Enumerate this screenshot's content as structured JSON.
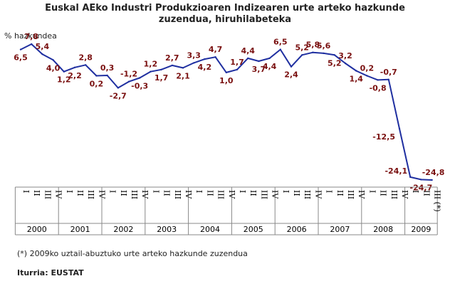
{
  "title_line1": "Euskal AEko Industri Produkzioaren Indizearen urte arteko hazkunde",
  "title_line2": "zuzendua, hiruhilabeteka",
  "ylabel": "% hazkundea",
  "note": "(*) 2009ko uztail-abuztuko urte arteko hazkunde zuzendua",
  "source": "Iturria: EUSTAT",
  "colors": {
    "line": "#1f2fa0",
    "labels": "#7a1010",
    "axis": "#888888"
  },
  "chart_data": {
    "type": "line",
    "title": "Euskal AEko Industri Produkzioaren Indizearen urte arteko hazkunde zuzendua, hiruhilabeteka",
    "ylabel": "% hazkundea",
    "ylim": [
      -26,
      9
    ],
    "grid": false,
    "x": [
      "2000-I",
      "2000-II",
      "2000-III",
      "2000-IV",
      "2001-I",
      "2001-II",
      "2001-III",
      "2001-IV",
      "2002-I",
      "2002-II",
      "2002-III",
      "2002-IV",
      "2003-I",
      "2003-II",
      "2003-III",
      "2003-IV",
      "2004-I",
      "2004-II",
      "2004-III",
      "2004-IV",
      "2005-I",
      "2005-II",
      "2005-III",
      "2005-IV",
      "2006-I",
      "2006-II",
      "2006-III",
      "2006-IV",
      "2007-I",
      "2007-II",
      "2007-III",
      "2007-IV",
      "2008-I",
      "2008-II",
      "2008-III",
      "2008-IV",
      "2009-I",
      "2009-II",
      "2009-III (*)"
    ],
    "values": [
      6.5,
      7.8,
      5.4,
      4.0,
      1.2,
      2.2,
      2.8,
      0.2,
      0.3,
      -2.7,
      -1.2,
      -0.3,
      1.2,
      1.7,
      2.7,
      2.1,
      3.3,
      4.2,
      4.7,
      1.0,
      1.7,
      4.4,
      3.7,
      4.4,
      6.5,
      2.4,
      5.2,
      5.8,
      5.6,
      5.2,
      3.2,
      1.4,
      0.2,
      -0.8,
      -0.7,
      -12.5,
      -24.1,
      -24.7,
      -24.8
    ],
    "data_labels": [
      "6,5",
      "7,8",
      "5,4",
      "4,0",
      "1,2",
      "2,2",
      "2,8",
      "0,2",
      "0,3",
      "-2,7",
      "-1,2",
      "-0,3",
      "1,2",
      "1,7",
      "2,7",
      "2,1",
      "3,3",
      "4,2",
      "4,7",
      "1,0",
      "1,7",
      "4,4",
      "3,7",
      "4,4",
      "6,5",
      "2,4",
      "5,2",
      "5,8",
      "5,6",
      "5,2",
      "3,2",
      "1,4",
      "0,2",
      "-0,8",
      "-0,7",
      "-12,5",
      "-24,1",
      "-24,7",
      "-24,8"
    ],
    "quarter_labels": [
      "I",
      "II",
      "III",
      "IV",
      "I",
      "II",
      "III",
      "IV",
      "I",
      "II",
      "III",
      "IV",
      "I",
      "II",
      "III",
      "IV",
      "I",
      "II",
      "III",
      "IV",
      "I",
      "II",
      "III",
      "IV",
      "I",
      "II",
      "III",
      "IV",
      "I",
      "II",
      "III",
      "IV",
      "I",
      "II",
      "III",
      "IV",
      "I",
      "II",
      "III (*)"
    ],
    "years": [
      "2000",
      "2001",
      "2002",
      "2003",
      "2004",
      "2005",
      "2006",
      "2007",
      "2008",
      "2009"
    ]
  }
}
